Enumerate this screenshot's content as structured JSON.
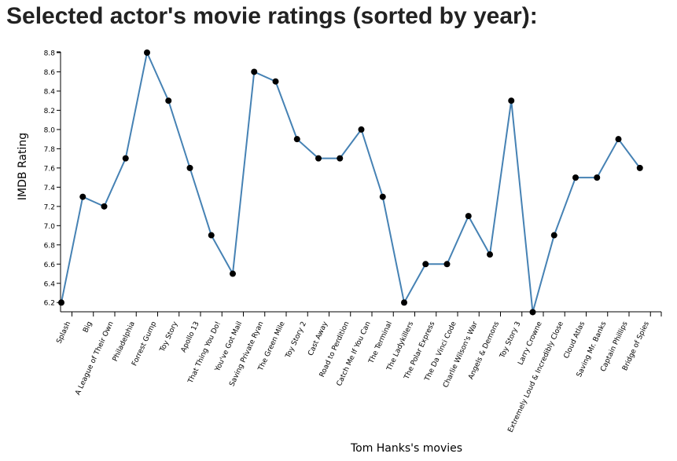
{
  "page": {
    "title": "Selected actor's movie ratings (sorted by year):"
  },
  "chart_data": {
    "type": "line",
    "title": "",
    "xlabel": "Tom Hanks's movies",
    "ylabel": "IMDB Rating",
    "ylim": [
      6.1,
      8.8
    ],
    "yticks": [
      6.2,
      6.4,
      6.6,
      6.8,
      7.0,
      7.2,
      7.4,
      7.6,
      7.8,
      8.0,
      8.2,
      8.4,
      8.6,
      8.8
    ],
    "ytick_labels": [
      "6.2",
      "6.4",
      "6.6",
      "6.8",
      "7.0",
      "7.2",
      "7.4",
      "7.6",
      "7.8",
      "8.0",
      "8.2",
      "8.4",
      "8.6",
      "8.8"
    ],
    "grid": false,
    "line_color": "#4682b4",
    "marker_color": "#000000",
    "categories": [
      "Splash",
      "Big",
      "A League of Their Own",
      "Philadelphia",
      "Forrest Gump",
      "Toy Story",
      "Apollo 13",
      "That Thing You Do!",
      "You've Got Mail",
      "Saving Private Ryan",
      "The Green Mile",
      "Toy Story 2",
      "Cast Away",
      "Road to Perdition",
      "Catch Me If You Can",
      "The Terminal",
      "The Ladykillers",
      "The Polar Express",
      "The Da Vinci Code",
      "Charlie Wilson's War",
      "Angels & Demons",
      "Toy Story 3",
      "Larry Crowne",
      "Extremely Loud & Incredibly Close",
      "Cloud Atlas",
      "Saving Mr. Banks",
      "Captain Phillips",
      "Bridge of Spies"
    ],
    "values": [
      6.2,
      7.3,
      7.2,
      7.7,
      8.8,
      8.3,
      7.6,
      6.9,
      6.5,
      8.6,
      8.5,
      7.9,
      7.7,
      7.7,
      8.0,
      7.3,
      6.2,
      6.6,
      6.6,
      7.1,
      6.7,
      8.3,
      6.1,
      6.9,
      7.5,
      7.5,
      7.9,
      7.6
    ]
  }
}
